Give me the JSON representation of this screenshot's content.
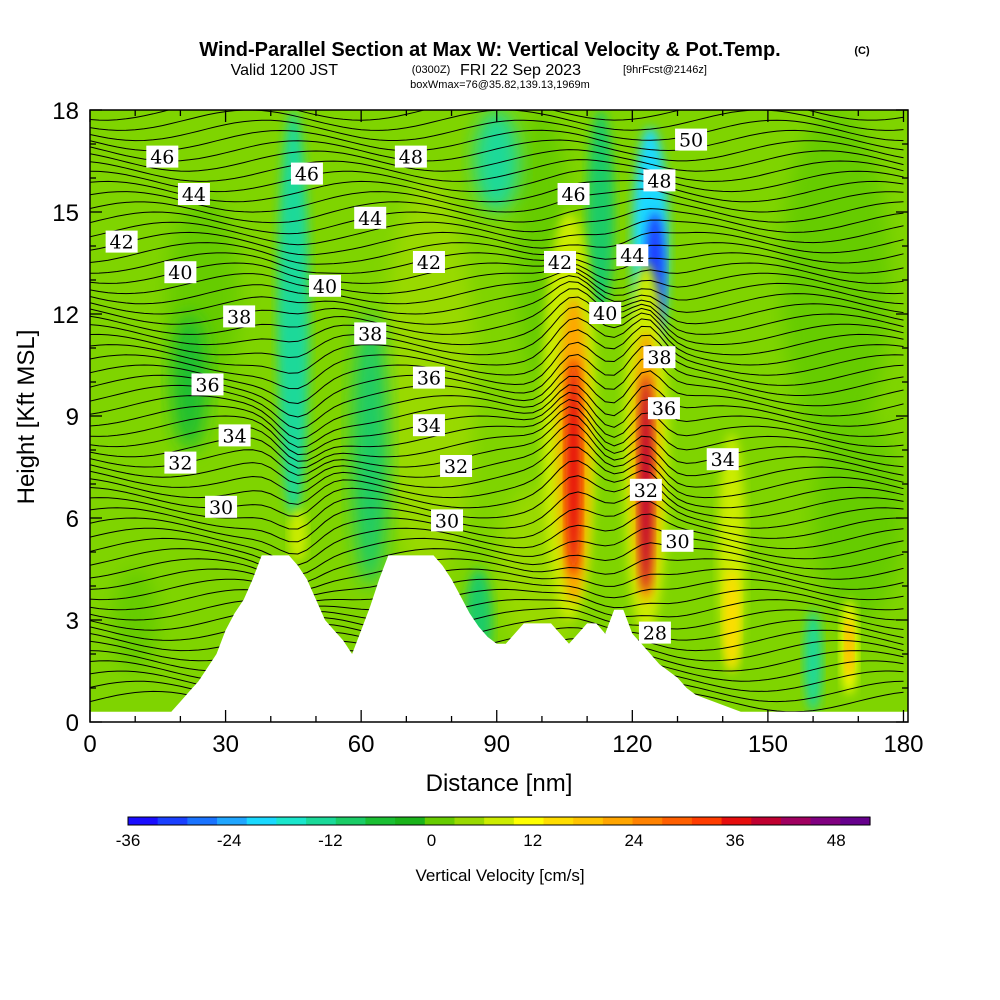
{
  "chart_data": {
    "type": "heatmap",
    "title": "Wind-Parallel Section at Max W: Vertical Velocity & Pot.Temp.",
    "title_copyright": "(C)",
    "subtitle_prefix": "Valid 1200 JST",
    "subtitle_utc": "(0300Z)",
    "subtitle_date": "FRI 22 Sep 2023",
    "subtitle_fcst": "[9hrFcst@2146z]",
    "subtitle_box": "boxWmax=76@35.82,139.13,1969m",
    "xlabel": "Distance [nm]",
    "ylabel": "Height [Kft MSL]",
    "xlim": [
      0,
      181
    ],
    "ylim": [
      0,
      18
    ],
    "x_ticks": [
      "0",
      "30",
      "60",
      "90",
      "120",
      "150",
      "180"
    ],
    "y_ticks": [
      "0",
      "3",
      "6",
      "9",
      "12",
      "15",
      "18"
    ],
    "colorbar": {
      "title": "Vertical Velocity [cm/s]",
      "range": [
        -36,
        52
      ],
      "step": 4,
      "tick_labels": [
        "-36",
        "-24",
        "-12",
        "0",
        "12",
        "24",
        "36",
        "48"
      ],
      "colors": [
        "#1a0dff",
        "#1a40ff",
        "#1a73ff",
        "#20a6ff",
        "#1ad9ff",
        "#1ae6cc",
        "#1ad999",
        "#1acc66",
        "#1abf33",
        "#1ab31a",
        "#66cc00",
        "#99d900",
        "#ccec00",
        "#ffff00",
        "#ffdd00",
        "#ffc400",
        "#ffa500",
        "#ff8200",
        "#ff5f00",
        "#ff3c00",
        "#e60d0d",
        "#c00030",
        "#a00060",
        "#800080",
        "#66008c"
      ]
    },
    "potential_temperature_labels": [
      {
        "text": "46",
        "x": 16,
        "y": 16.6
      },
      {
        "text": "44",
        "x": 23,
        "y": 15.5
      },
      {
        "text": "42",
        "x": 7,
        "y": 14.1
      },
      {
        "text": "40",
        "x": 20,
        "y": 13.2
      },
      {
        "text": "38",
        "x": 33,
        "y": 11.9
      },
      {
        "text": "36",
        "x": 26,
        "y": 9.9
      },
      {
        "text": "34",
        "x": 32,
        "y": 8.4
      },
      {
        "text": "32",
        "x": 20,
        "y": 7.6
      },
      {
        "text": "30",
        "x": 29,
        "y": 6.3
      },
      {
        "text": "46",
        "x": 48,
        "y": 16.1
      },
      {
        "text": "44",
        "x": 62,
        "y": 14.8
      },
      {
        "text": "40",
        "x": 52,
        "y": 12.8
      },
      {
        "text": "38",
        "x": 62,
        "y": 11.4
      },
      {
        "text": "48",
        "x": 71,
        "y": 16.6
      },
      {
        "text": "42",
        "x": 75,
        "y": 13.5
      },
      {
        "text": "36",
        "x": 75,
        "y": 10.1
      },
      {
        "text": "34",
        "x": 75,
        "y": 8.7
      },
      {
        "text": "32",
        "x": 81,
        "y": 7.5
      },
      {
        "text": "30",
        "x": 79,
        "y": 5.9
      },
      {
        "text": "46",
        "x": 107,
        "y": 15.5
      },
      {
        "text": "42",
        "x": 104,
        "y": 13.5
      },
      {
        "text": "40",
        "x": 114,
        "y": 12.0
      },
      {
        "text": "44",
        "x": 120,
        "y": 13.7
      },
      {
        "text": "48",
        "x": 126,
        "y": 15.9
      },
      {
        "text": "50",
        "x": 133,
        "y": 17.1
      },
      {
        "text": "38",
        "x": 126,
        "y": 10.7
      },
      {
        "text": "36",
        "x": 127,
        "y": 9.2
      },
      {
        "text": "34",
        "x": 140,
        "y": 7.7
      },
      {
        "text": "32",
        "x": 123,
        "y": 6.8
      },
      {
        "text": "30",
        "x": 130,
        "y": 5.3
      },
      {
        "text": "28",
        "x": 125,
        "y": 2.6
      }
    ],
    "velocity_features": [
      {
        "type": "updraft",
        "x": 107,
        "y": 7.5,
        "peak": 50
      },
      {
        "type": "updraft",
        "x": 123,
        "y": 7.0,
        "peak": 50
      },
      {
        "type": "updraft",
        "x": 142,
        "y": 5.0,
        "peak": 20
      },
      {
        "type": "updraft",
        "x": 168,
        "y": 2.2,
        "peak": 28
      },
      {
        "type": "downdraft",
        "x": 125,
        "y": 13.5,
        "peak": -30
      },
      {
        "type": "downdraft",
        "x": 44,
        "y": 11.0,
        "peak": -12
      },
      {
        "type": "downdraft",
        "x": 160,
        "y": 1.8,
        "peak": -10
      }
    ],
    "terrain": {
      "x": [
        0,
        18,
        20,
        22,
        24,
        26,
        28,
        30,
        32,
        34,
        36,
        38,
        40,
        42,
        44,
        46,
        48,
        50,
        52,
        54,
        56,
        58,
        60,
        62,
        64,
        66,
        68,
        70,
        72,
        74,
        76,
        78,
        80,
        82,
        84,
        86,
        88,
        90,
        92,
        94,
        96,
        98,
        100,
        102,
        104,
        106,
        108,
        110,
        112,
        114,
        116,
        118,
        120,
        122,
        124,
        126,
        128,
        130,
        132,
        134,
        136,
        138,
        140,
        142,
        144,
        146,
        148,
        150,
        152,
        154,
        156,
        158,
        160,
        162,
        164,
        166,
        168,
        170,
        172,
        174,
        176,
        178,
        181
      ],
      "height_kft": [
        0.3,
        0.3,
        0.6,
        0.9,
        1.2,
        1.6,
        2.0,
        2.7,
        3.2,
        3.6,
        4.2,
        4.9,
        4.9,
        4.9,
        4.9,
        4.6,
        4.2,
        3.6,
        3.0,
        2.7,
        2.4,
        2.0,
        2.7,
        3.4,
        4.2,
        4.9,
        4.9,
        4.9,
        4.9,
        4.9,
        4.9,
        4.6,
        4.2,
        3.7,
        3.2,
        2.8,
        2.5,
        2.3,
        2.3,
        2.6,
        2.9,
        2.9,
        2.9,
        2.9,
        2.6,
        2.3,
        2.6,
        2.9,
        2.9,
        2.6,
        3.3,
        3.3,
        2.6,
        2.3,
        2.0,
        1.7,
        1.5,
        1.3,
        1.0,
        0.8,
        0.7,
        0.6,
        0.5,
        0.4,
        0.3,
        0.3,
        0.3,
        0.3,
        0.3,
        0.3,
        0.3,
        0.3,
        0.3,
        0.3,
        0.3,
        0.3,
        0.3,
        0.3,
        0.3,
        0.3,
        0.3,
        0.3,
        0.3
      ]
    },
    "grid": false
  }
}
